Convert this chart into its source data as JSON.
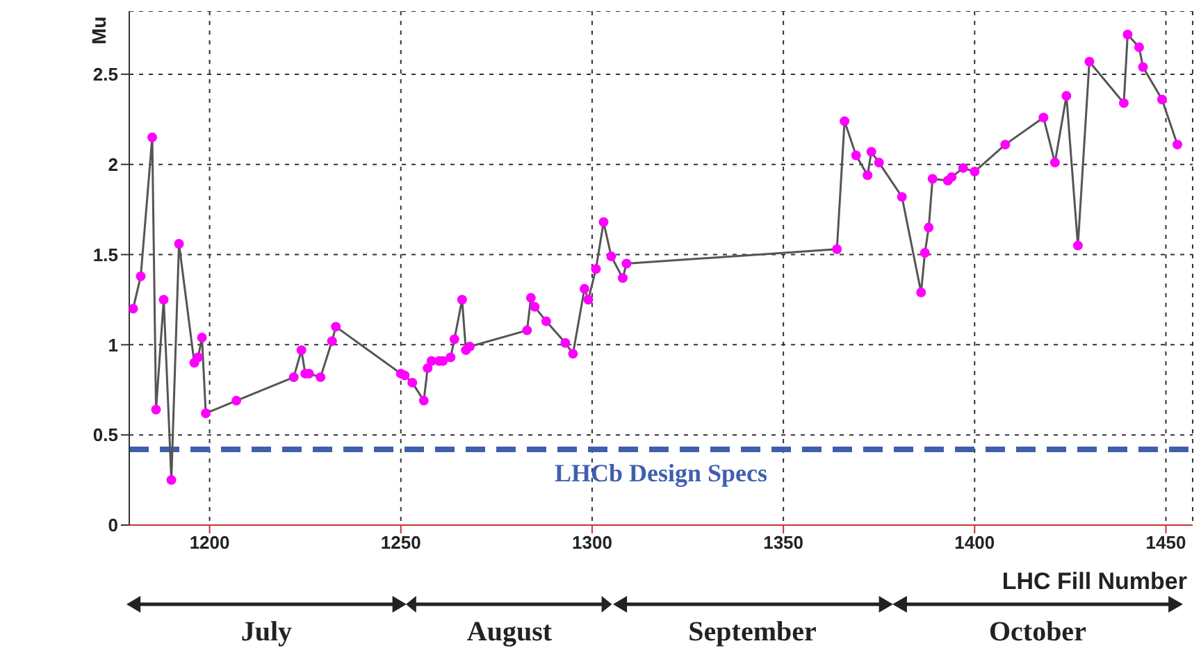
{
  "chart_data": {
    "type": "line",
    "ylabel": "Mu",
    "xlabel": "LHC Fill Number",
    "series": [
      {
        "color": "#ff00ff",
        "x": [
          1180,
          1182,
          1185,
          1186,
          1188,
          1190,
          1192,
          1196,
          1197,
          1198,
          1199,
          1207,
          1222,
          1224,
          1225,
          1226,
          1229,
          1232,
          1233,
          1250,
          1251,
          1253,
          1256,
          1257,
          1258,
          1260,
          1261,
          1263,
          1264,
          1266,
          1267,
          1268,
          1283,
          1284,
          1285,
          1288,
          1293,
          1295,
          1298,
          1299,
          1301,
          1303,
          1305,
          1308,
          1309,
          1364,
          1366,
          1369,
          1372,
          1373,
          1375,
          1381,
          1386,
          1387,
          1388,
          1389,
          1393,
          1394,
          1397,
          1400,
          1408,
          1418,
          1421,
          1424,
          1427,
          1430,
          1439,
          1440,
          1443,
          1444,
          1449,
          1453
        ],
        "values": [
          1.2,
          1.38,
          2.15,
          0.64,
          1.25,
          0.25,
          1.56,
          0.9,
          0.93,
          1.04,
          0.62,
          0.69,
          0.82,
          0.97,
          0.84,
          0.84,
          0.82,
          1.02,
          1.1,
          0.84,
          0.83,
          0.79,
          0.69,
          0.87,
          0.91,
          0.91,
          0.91,
          0.93,
          1.03,
          1.25,
          0.97,
          0.99,
          1.08,
          1.26,
          1.21,
          1.13,
          1.01,
          0.95,
          1.31,
          1.25,
          1.42,
          1.68,
          1.49,
          1.37,
          1.45,
          1.53,
          2.24,
          2.05,
          1.94,
          2.07,
          2.01,
          1.82,
          1.29,
          1.51,
          1.65,
          1.92,
          1.91,
          1.93,
          1.98,
          1.96,
          2.11,
          2.26,
          2.01,
          2.38,
          1.55,
          2.57,
          2.34,
          2.72,
          2.65,
          2.54,
          2.36,
          2.11
        ]
      }
    ],
    "xlim": [
      1179,
      1457
    ],
    "xticks": [
      1200,
      1250,
      1300,
      1350,
      1400,
      1450
    ],
    "ylim": [
      0,
      2.85
    ],
    "yticks": [
      0,
      0.5,
      1,
      1.5,
      2,
      2.5
    ],
    "grid": true,
    "marker": "circle",
    "line_style": "solid",
    "ref_lines": [
      {
        "axis": "y",
        "value": 0.42,
        "label": "LHCb Design Specs",
        "color": "#3f5fad",
        "line_style": "dashed"
      }
    ],
    "annotations": [
      "July",
      "August",
      "September",
      "October"
    ]
  }
}
